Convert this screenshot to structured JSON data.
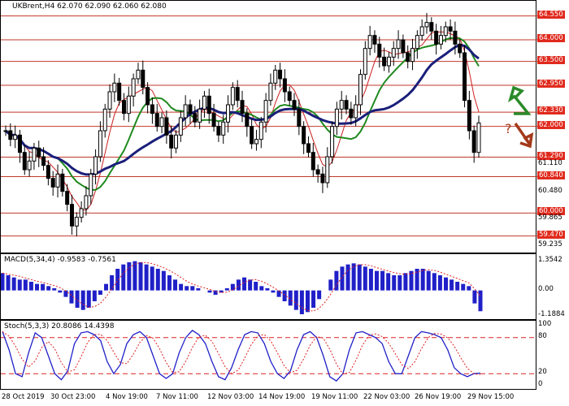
{
  "header": {
    "symbol": "UKBrent,H4",
    "ohlc": "62.070 62.090 62.060 62.080"
  },
  "price_axis": {
    "levels": [
      "64.550",
      "64.000",
      "63.500",
      "62.950",
      "62.330",
      "62.000",
      "61.290",
      "60.840",
      "60.000",
      "59.470"
    ],
    "plain": [
      "61.110",
      "60.480",
      "59.865",
      "59.235"
    ]
  },
  "macd": {
    "title": "MACD(5,34,4) -0.9583 -0.7561",
    "ticks": [
      "1.3542",
      "0.00",
      "-1.1884"
    ]
  },
  "stoch": {
    "title": "Stoch(5,3,3) 20.8086 14.4398",
    "ticks": [
      "100",
      "80",
      "20",
      "0"
    ]
  },
  "time_axis": [
    "28 Oct 2019",
    "30 Oct 23:00",
    "4 Nov 19:00",
    "7 Nov 11:00",
    "12 Nov 03:00",
    "14 Nov 19:00",
    "19 Nov 11:00",
    "22 Nov 03:00",
    "26 Nov 19:00",
    "29 Nov 15:00"
  ],
  "colors": {
    "level_line": "#c0392b",
    "ma_fast": "#cc2020",
    "ma_mid": "#1f8a1f",
    "ma_slow": "#1a1f7a",
    "macd_bar": "#2020c8",
    "signal": "#e02020",
    "up_arrow": "#2a8a2a",
    "down_arrow": "#a33a1a"
  },
  "chart_data": {
    "type": "candlestick",
    "instrument": "UKBrent",
    "timeframe": "H4",
    "horizontal_levels": [
      64.55,
      64.0,
      63.5,
      62.95,
      62.33,
      62.0,
      61.29,
      60.84,
      60.0,
      59.47
    ],
    "closes": [
      61.9,
      61.7,
      61.8,
      61.4,
      61.0,
      61.2,
      61.5,
      61.3,
      61.1,
      60.8,
      60.6,
      60.9,
      60.5,
      60.2,
      59.7,
      59.9,
      60.1,
      60.4,
      60.9,
      61.3,
      61.9,
      62.4,
      62.8,
      63.0,
      62.6,
      62.3,
      62.7,
      63.1,
      63.3,
      62.9,
      62.5,
      62.3,
      62.0,
      62.2,
      61.8,
      61.5,
      61.8,
      62.2,
      62.5,
      62.3,
      62.1,
      62.4,
      62.7,
      62.3,
      62.0,
      61.8,
      62.1,
      62.5,
      62.9,
      62.6,
      62.3,
      62.0,
      61.6,
      61.7,
      62.1,
      62.6,
      63.0,
      63.3,
      63.1,
      62.8,
      62.6,
      62.4,
      62.0,
      61.6,
      61.4,
      61.0,
      60.9,
      60.7,
      61.3,
      62.0,
      62.4,
      62.6,
      62.4,
      62.2,
      62.5,
      63.2,
      63.8,
      64.1,
      63.9,
      63.6,
      63.4,
      63.6,
      63.8,
      64.0,
      63.7,
      63.5,
      63.8,
      64.1,
      64.3,
      64.4,
      64.2,
      63.9,
      64.1,
      64.3,
      64.2,
      63.9,
      63.7,
      62.6,
      61.9,
      61.4,
      62.08
    ],
    "macd_values": [
      0.8,
      0.7,
      0.6,
      0.5,
      0.5,
      0.4,
      0.3,
      0.3,
      0.2,
      0.1,
      -0.1,
      -0.3,
      -0.6,
      -0.8,
      -0.9,
      -0.8,
      -0.5,
      -0.2,
      0.3,
      0.7,
      1.0,
      1.2,
      1.3,
      1.35,
      1.3,
      1.2,
      1.1,
      1.0,
      0.9,
      0.7,
      0.5,
      0.3,
      0.2,
      0.2,
      0.1,
      0.0,
      -0.1,
      -0.2,
      -0.1,
      0.1,
      0.3,
      0.5,
      0.6,
      0.5,
      0.4,
      0.2,
      0.1,
      -0.1,
      -0.3,
      -0.5,
      -0.7,
      -0.9,
      -1.1,
      -1.0,
      -0.8,
      -0.4,
      0.0,
      0.5,
      0.9,
      1.1,
      1.2,
      1.25,
      1.2,
      1.1,
      1.0,
      0.9,
      0.9,
      0.8,
      0.7,
      0.7,
      0.8,
      0.9,
      1.0,
      1.0,
      0.9,
      0.8,
      0.7,
      0.6,
      0.5,
      0.4,
      0.3,
      0.2,
      -0.6,
      -0.96
    ],
    "stoch_main": [
      90,
      60,
      20,
      15,
      55,
      88,
      80,
      50,
      20,
      10,
      25,
      70,
      88,
      90,
      85,
      75,
      40,
      20,
      35,
      70,
      85,
      90,
      80,
      50,
      20,
      12,
      20,
      55,
      80,
      92,
      85,
      70,
      40,
      15,
      10,
      30,
      60,
      85,
      90,
      88,
      70,
      40,
      20,
      12,
      25,
      60,
      85,
      90,
      80,
      50,
      15,
      8,
      20,
      60,
      88,
      90,
      85,
      80,
      70,
      40,
      20,
      20,
      50,
      80,
      90,
      88,
      85,
      80,
      60,
      30,
      20,
      15,
      20,
      21
    ]
  }
}
